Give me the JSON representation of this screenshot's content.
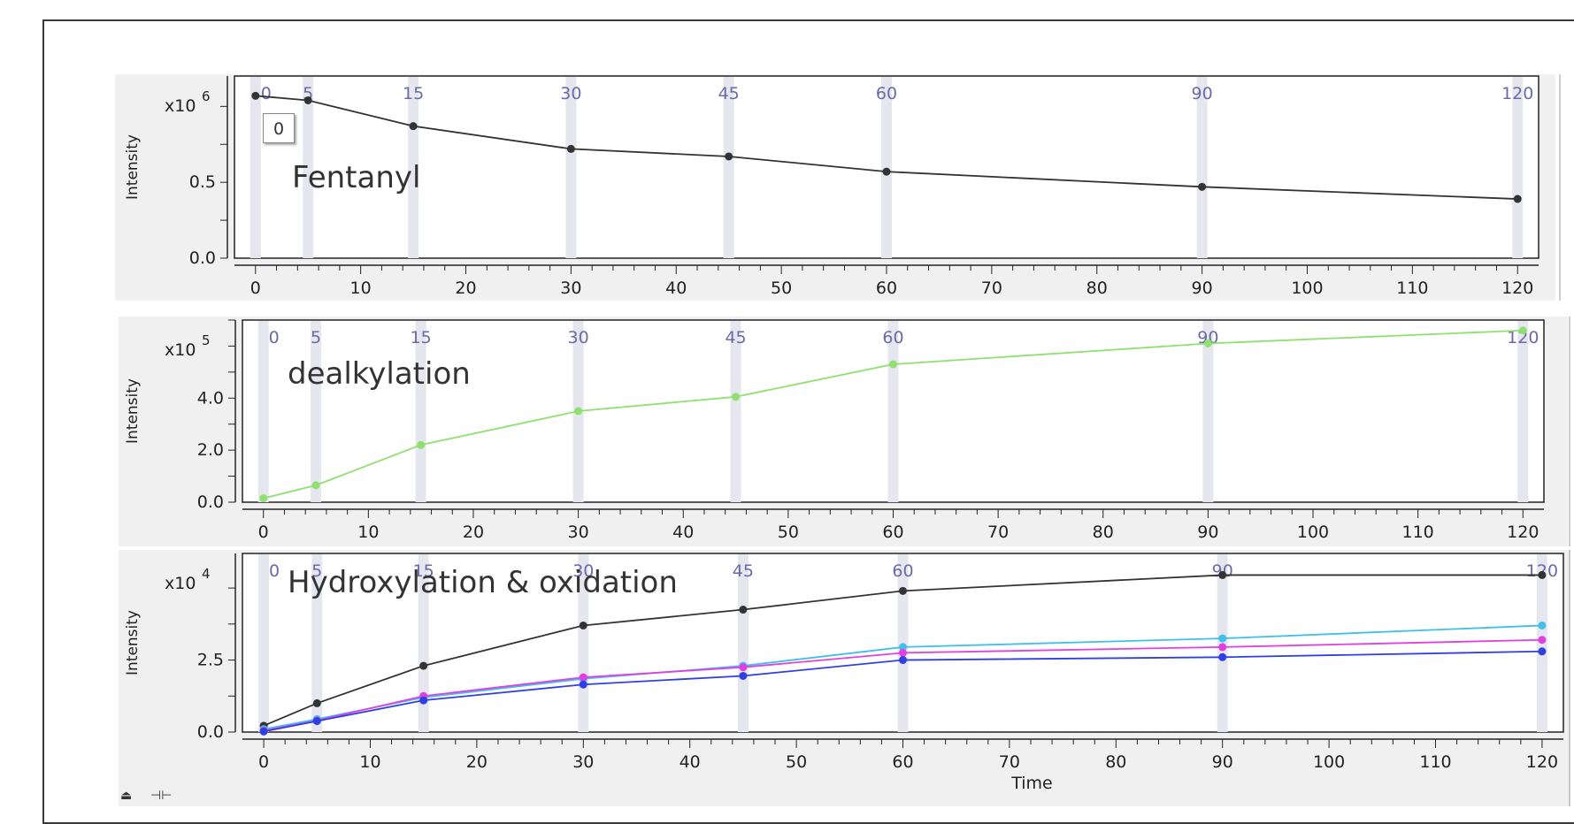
{
  "tooltip": "0",
  "controls": {
    "collapse_icon": "eject-icon",
    "split_icon": "split-horizontal-icon"
  },
  "chart_data": [
    {
      "type": "line",
      "annotation": "Fentanyl",
      "ylabel": "Intensity",
      "xlabel": "",
      "multiplier": {
        "base": "x10",
        "exp": "6"
      },
      "xlim": [
        -2,
        122
      ],
      "ylim": [
        0,
        1.2
      ],
      "x_ticks": [
        0,
        10,
        20,
        30,
        40,
        50,
        60,
        70,
        80,
        90,
        100,
        110,
        120
      ],
      "y_ticks": [
        {
          "v": 0,
          "label": "0.0"
        },
        {
          "v": 0.5,
          "label": "0.5"
        }
      ],
      "timepoints": [
        "0",
        "5",
        "15",
        "30",
        "45",
        "60",
        "90",
        "120"
      ],
      "x": [
        0,
        5,
        15,
        30,
        45,
        60,
        90,
        120
      ],
      "series": [
        {
          "color": "#333333",
          "values": [
            1.07,
            1.04,
            0.87,
            0.72,
            0.67,
            0.57,
            0.47,
            0.39
          ]
        }
      ]
    },
    {
      "type": "line",
      "annotation": "dealkylation",
      "ylabel": "Intensity",
      "xlabel": "",
      "multiplier": {
        "base": "x10",
        "exp": "5"
      },
      "xlim": [
        -2,
        122
      ],
      "ylim": [
        0,
        7.0
      ],
      "x_ticks": [
        0,
        10,
        20,
        30,
        40,
        50,
        60,
        70,
        80,
        90,
        100,
        110,
        120
      ],
      "y_ticks": [
        {
          "v": 0,
          "label": "0.0"
        },
        {
          "v": 2,
          "label": "2.0"
        },
        {
          "v": 4,
          "label": "4.0"
        }
      ],
      "timepoints": [
        "0",
        "5",
        "15",
        "30",
        "45",
        "60",
        "90",
        "120"
      ],
      "x": [
        0,
        5,
        15,
        30,
        45,
        60,
        90,
        120
      ],
      "series": [
        {
          "color": "#90e070",
          "values": [
            0.15,
            0.65,
            2.2,
            3.5,
            4.05,
            5.3,
            6.1,
            6.6
          ]
        }
      ]
    },
    {
      "type": "line",
      "annotation": "Hydroxylation & oxidation",
      "ylabel": "Intensity",
      "xlabel": "Time",
      "multiplier": {
        "base": "x10",
        "exp": "4"
      },
      "xlim": [
        -2,
        122
      ],
      "ylim": [
        0,
        6.2
      ],
      "x_ticks": [
        0,
        10,
        20,
        30,
        40,
        50,
        60,
        70,
        80,
        90,
        100,
        110,
        120
      ],
      "y_ticks": [
        {
          "v": 0,
          "label": "0.0"
        },
        {
          "v": 2.5,
          "label": "2.5"
        }
      ],
      "timepoints": [
        "0",
        "5",
        "15",
        "30",
        "45",
        "60",
        "90",
        "120"
      ],
      "x": [
        0,
        5,
        15,
        30,
        45,
        60,
        90,
        120
      ],
      "series": [
        {
          "color": "#333333",
          "values": [
            0.22,
            1.0,
            2.3,
            3.7,
            4.25,
            4.9,
            5.45,
            5.45
          ]
        },
        {
          "color": "#40c0e8",
          "values": [
            0.1,
            0.45,
            1.2,
            1.85,
            2.3,
            2.95,
            3.25,
            3.7
          ]
        },
        {
          "color": "#e040e0",
          "values": [
            0.05,
            0.4,
            1.25,
            1.9,
            2.25,
            2.75,
            2.95,
            3.2
          ]
        },
        {
          "color": "#3040e0",
          "values": [
            0.02,
            0.38,
            1.1,
            1.65,
            1.95,
            2.5,
            2.6,
            2.8
          ]
        }
      ]
    }
  ]
}
